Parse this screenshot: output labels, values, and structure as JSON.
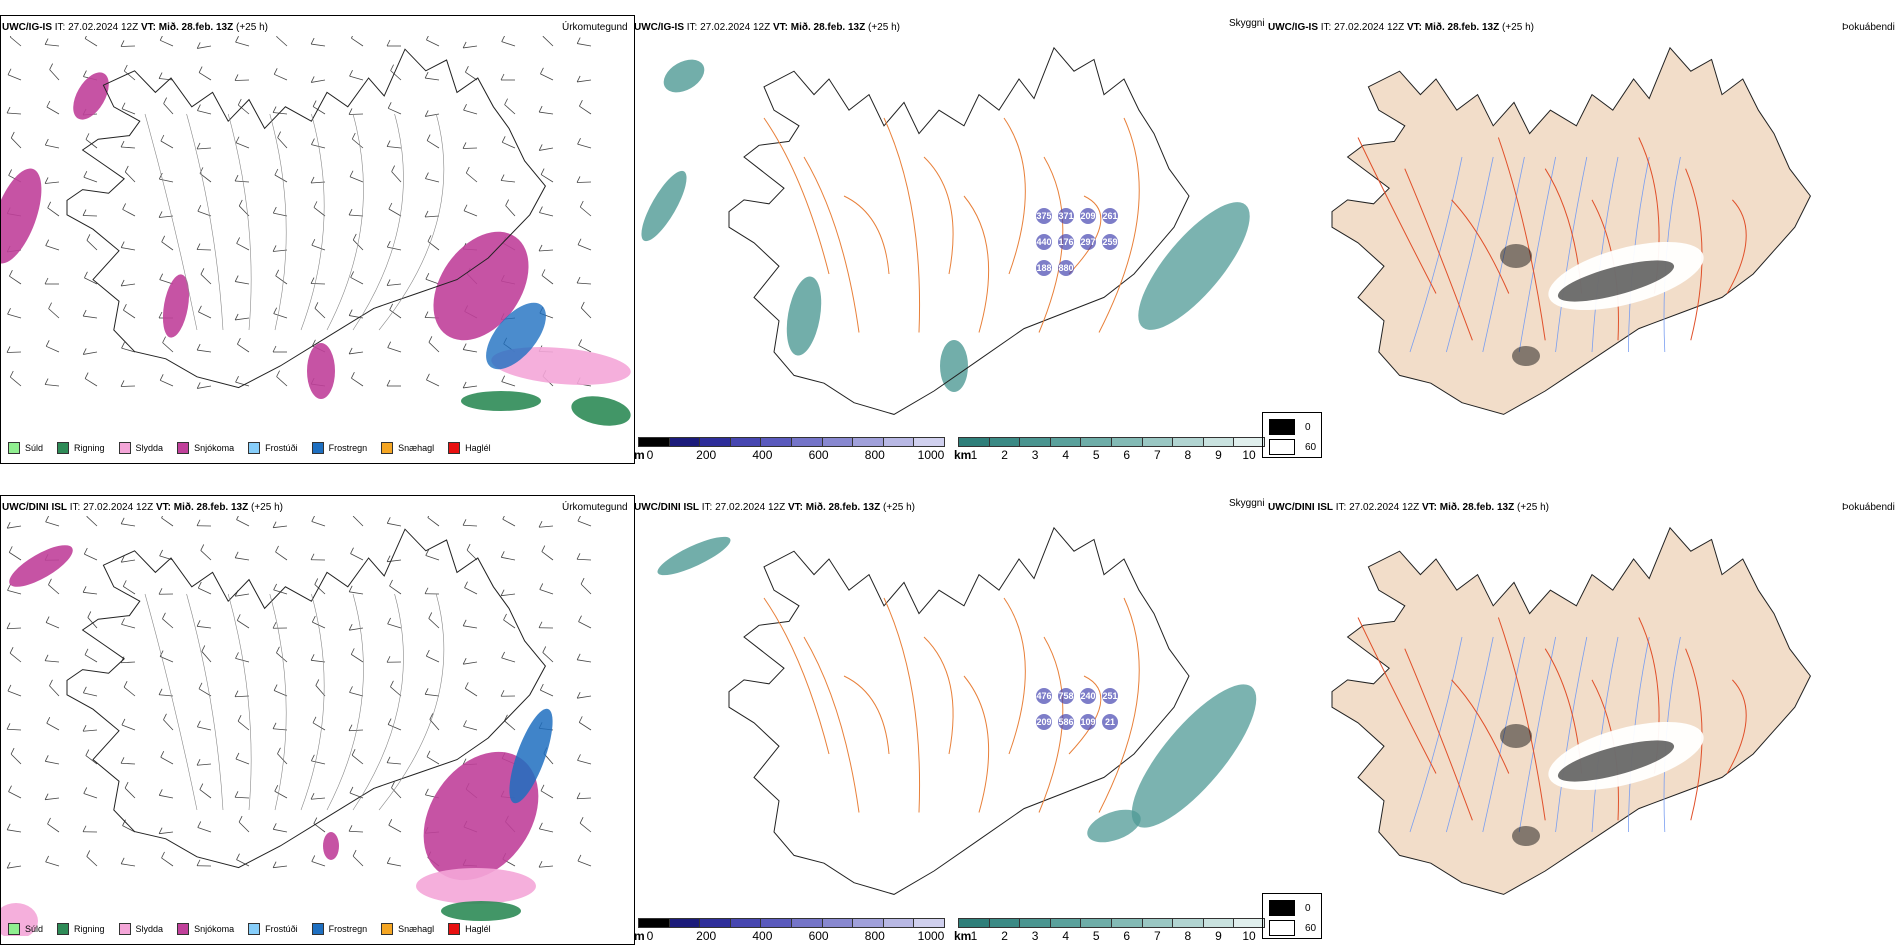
{
  "rows": [
    {
      "model": "UWC/IG-IS",
      "it_label": "IT:",
      "it": "27.02.2024 12Z",
      "vt_label": "VT:",
      "vt": "Mið. 28.feb. 13Z",
      "lead": "(+25 h)"
    },
    {
      "model": "UWC/DINI ISL",
      "it_label": "IT:",
      "it": "27.02.2024 12Z",
      "vt_label": "VT:",
      "vt": "Mið. 28.feb. 13Z",
      "lead": "(+25 h)"
    }
  ],
  "panels": {
    "precip": {
      "name": "Úrkomutegund"
    },
    "cloud": {
      "name": "Skyggni"
    },
    "fog": {
      "name": "Þokuábendi"
    }
  },
  "precip_legend": [
    {
      "label": "Súld",
      "color": "#90ee90"
    },
    {
      "label": "Rigning",
      "color": "#2e8b57"
    },
    {
      "label": "Slydda",
      "color": "#f4a6d8"
    },
    {
      "label": "Snjókoma",
      "color": "#c0409a"
    },
    {
      "label": "Frostúði",
      "color": "#87cefa"
    },
    {
      "label": "Frostregn",
      "color": "#1e6fc0"
    },
    {
      "label": "Snæhagl",
      "color": "#f5a623"
    },
    {
      "label": "Haglél",
      "color": "#e81010"
    }
  ],
  "ceiling_scale": {
    "unit": "m",
    "ticks": [
      "0",
      "200",
      "400",
      "600",
      "800",
      "1000"
    ],
    "colors": [
      "#000000",
      "#1b1b7a",
      "#2e2e9a",
      "#4646b0",
      "#5a5abd",
      "#7474c8",
      "#8888d0",
      "#a0a0da",
      "#b8b8e4",
      "#d0d0ee"
    ]
  },
  "visibility_scale": {
    "unit": "km",
    "ticks": [
      "1",
      "2",
      "3",
      "4",
      "5",
      "6",
      "7",
      "8",
      "9",
      "10"
    ],
    "colors": [
      "#2f7f7a",
      "#3b8a85",
      "#4a9590",
      "#5aa19c",
      "#6eada8",
      "#83bab5",
      "#9ac7c3",
      "#b1d4d1",
      "#c9e2df",
      "#e0efed"
    ]
  },
  "fog_key": [
    {
      "label": "0",
      "color": "#000000"
    },
    {
      "label": "60",
      "color": "#ffffff"
    }
  ],
  "cloud_labels": {
    "top": [
      "375",
      "371",
      "209",
      "261",
      "440",
      "176",
      "297",
      "259",
      "188",
      "880"
    ],
    "bottom": [
      "476",
      "758",
      "240",
      "251",
      "209",
      "586",
      "109",
      "21"
    ]
  },
  "colors": {
    "land": "#f2ddc9",
    "road": "#e8803a",
    "river": "#7a9ef0",
    "coast": "#222222",
    "teal": "#4f9a95",
    "magenta": "#c0409a",
    "pink": "#f4a6d8",
    "green": "#2e8b57",
    "blue": "#1e6fc0"
  }
}
